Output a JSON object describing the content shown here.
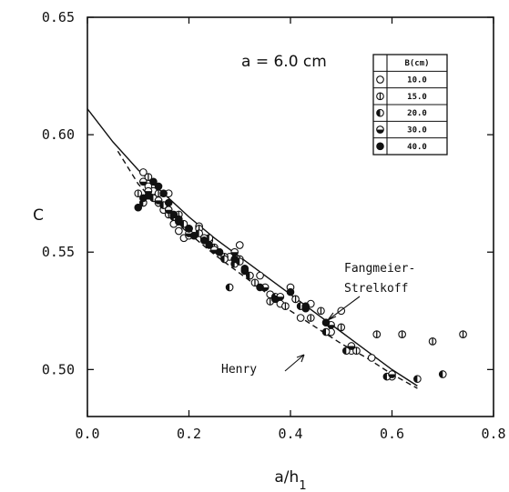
{
  "chart_data": {
    "type": "scatter",
    "title": "",
    "annotation": "a = 6.0 cm",
    "xlabel": "a/h",
    "xlabel_sub": "1",
    "ylabel": "C",
    "xlim": [
      0.0,
      0.8
    ],
    "ylim": [
      0.48,
      0.65
    ],
    "x_ticks": [
      "0.0",
      "0.2",
      "0.4",
      "0.6",
      "0.8"
    ],
    "x_tick_values": [
      0.0,
      0.2,
      0.4,
      0.6,
      0.8
    ],
    "y_ticks": [
      "0.50",
      "0.55",
      "0.60",
      "0.65"
    ],
    "y_tick_values": [
      0.5,
      0.55,
      0.6,
      0.65
    ],
    "grid": false,
    "legend": {
      "placement": "top-right",
      "header": "B(cm)",
      "entries": [
        "10.0",
        "15.0",
        "20.0",
        "30.0",
        "40.0"
      ]
    },
    "curves": [
      {
        "label_lines": [
          "Fangmeier-",
          "Strelkoff"
        ],
        "style": "solid",
        "x": [
          0.0,
          0.05,
          0.1,
          0.15,
          0.2,
          0.25,
          0.3,
          0.35,
          0.4,
          0.45,
          0.5,
          0.55,
          0.6,
          0.65
        ],
        "y": [
          0.611,
          0.597,
          0.585,
          0.575,
          0.565,
          0.556,
          0.548,
          0.54,
          0.532,
          0.524,
          0.516,
          0.508,
          0.5,
          0.493
        ]
      },
      {
        "label_lines": [
          "Henry"
        ],
        "style": "dashed",
        "x": [
          0.06,
          0.1,
          0.15,
          0.2,
          0.25,
          0.3,
          0.35,
          0.4,
          0.45,
          0.5,
          0.55,
          0.6,
          0.65
        ],
        "y": [
          0.593,
          0.579,
          0.567,
          0.558,
          0.549,
          0.541,
          0.533,
          0.525,
          0.518,
          0.511,
          0.505,
          0.498,
          0.492
        ]
      }
    ],
    "series": [
      {
        "name": "10.0",
        "marker": "open",
        "points": [
          [
            0.11,
            0.584
          ],
          [
            0.12,
            0.578
          ],
          [
            0.13,
            0.576
          ],
          [
            0.14,
            0.571
          ],
          [
            0.15,
            0.568
          ],
          [
            0.16,
            0.575
          ],
          [
            0.17,
            0.562
          ],
          [
            0.18,
            0.559
          ],
          [
            0.19,
            0.556
          ],
          [
            0.2,
            0.557
          ],
          [
            0.22,
            0.561
          ],
          [
            0.24,
            0.555
          ],
          [
            0.26,
            0.55
          ],
          [
            0.28,
            0.548
          ],
          [
            0.3,
            0.553
          ],
          [
            0.32,
            0.54
          ],
          [
            0.34,
            0.54
          ],
          [
            0.36,
            0.532
          ],
          [
            0.38,
            0.528
          ],
          [
            0.4,
            0.535
          ],
          [
            0.42,
            0.522
          ],
          [
            0.44,
            0.528
          ],
          [
            0.48,
            0.516
          ],
          [
            0.5,
            0.525
          ],
          [
            0.52,
            0.508
          ],
          [
            0.56,
            0.505
          ],
          [
            0.6,
            0.497
          ]
        ]
      },
      {
        "name": "15.0",
        "marker": "vertical-bar",
        "points": [
          [
            0.1,
            0.575
          ],
          [
            0.12,
            0.582
          ],
          [
            0.14,
            0.575
          ],
          [
            0.16,
            0.566
          ],
          [
            0.18,
            0.566
          ],
          [
            0.2,
            0.56
          ],
          [
            0.22,
            0.56
          ],
          [
            0.25,
            0.552
          ],
          [
            0.27,
            0.548
          ],
          [
            0.3,
            0.547
          ],
          [
            0.33,
            0.537
          ],
          [
            0.36,
            0.529
          ],
          [
            0.39,
            0.527
          ],
          [
            0.41,
            0.53
          ],
          [
            0.44,
            0.522
          ],
          [
            0.46,
            0.525
          ],
          [
            0.5,
            0.518
          ],
          [
            0.53,
            0.508
          ],
          [
            0.57,
            0.515
          ],
          [
            0.62,
            0.515
          ],
          [
            0.68,
            0.512
          ],
          [
            0.74,
            0.515
          ]
        ]
      },
      {
        "name": "20.0",
        "marker": "left-half",
        "points": [
          [
            0.11,
            0.571
          ],
          [
            0.13,
            0.573
          ],
          [
            0.15,
            0.57
          ],
          [
            0.17,
            0.565
          ],
          [
            0.19,
            0.562
          ],
          [
            0.22,
            0.558
          ],
          [
            0.24,
            0.556
          ],
          [
            0.27,
            0.547
          ],
          [
            0.29,
            0.545
          ],
          [
            0.3,
            0.546
          ],
          [
            0.28,
            0.535
          ],
          [
            0.32,
            0.54
          ],
          [
            0.37,
            0.531
          ],
          [
            0.42,
            0.527
          ],
          [
            0.47,
            0.516
          ],
          [
            0.51,
            0.508
          ],
          [
            0.59,
            0.497
          ],
          [
            0.65,
            0.496
          ],
          [
            0.7,
            0.498
          ]
        ]
      },
      {
        "name": "30.0",
        "marker": "bottom-half",
        "points": [
          [
            0.11,
            0.58
          ],
          [
            0.12,
            0.576
          ],
          [
            0.14,
            0.572
          ],
          [
            0.16,
            0.568
          ],
          [
            0.18,
            0.563
          ],
          [
            0.2,
            0.558
          ],
          [
            0.23,
            0.556
          ],
          [
            0.25,
            0.551
          ],
          [
            0.29,
            0.55
          ],
          [
            0.31,
            0.542
          ],
          [
            0.35,
            0.535
          ],
          [
            0.38,
            0.531
          ],
          [
            0.43,
            0.526
          ],
          [
            0.48,
            0.519
          ],
          [
            0.52,
            0.51
          ],
          [
            0.6,
            0.498
          ]
        ]
      },
      {
        "name": "40.0",
        "marker": "filled",
        "points": [
          [
            0.1,
            0.569
          ],
          [
            0.11,
            0.573
          ],
          [
            0.12,
            0.574
          ],
          [
            0.13,
            0.58
          ],
          [
            0.14,
            0.578
          ],
          [
            0.15,
            0.575
          ],
          [
            0.16,
            0.571
          ],
          [
            0.17,
            0.566
          ],
          [
            0.18,
            0.564
          ],
          [
            0.2,
            0.56
          ],
          [
            0.21,
            0.557
          ],
          [
            0.23,
            0.555
          ],
          [
            0.24,
            0.553
          ],
          [
            0.26,
            0.55
          ],
          [
            0.29,
            0.547
          ],
          [
            0.31,
            0.543
          ],
          [
            0.34,
            0.535
          ],
          [
            0.37,
            0.53
          ],
          [
            0.4,
            0.533
          ],
          [
            0.43,
            0.527
          ],
          [
            0.47,
            0.52
          ]
        ]
      }
    ]
  }
}
